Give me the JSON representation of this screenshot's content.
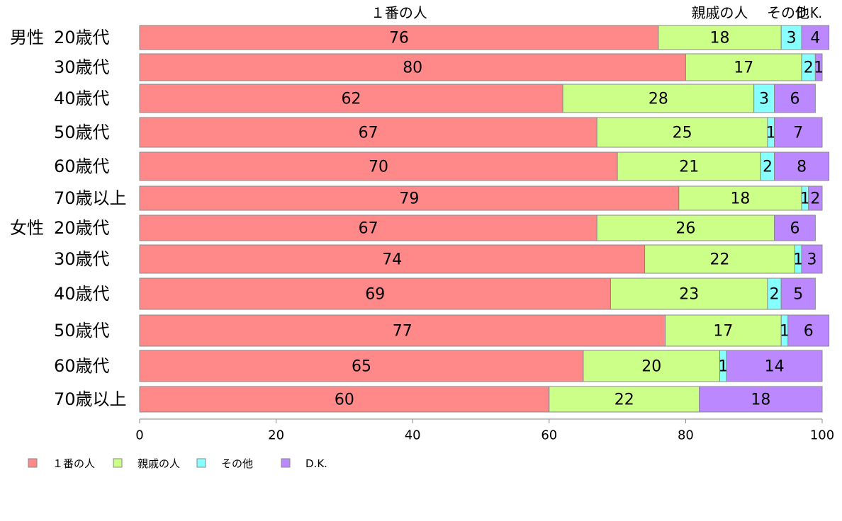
{
  "chart_data": {
    "type": "bar",
    "orientation": "horizontal",
    "stacked": true,
    "top_labels": [
      "１番の人",
      "親戚の人",
      "その他",
      "D.K."
    ],
    "groups": [
      {
        "name": "男性",
        "rows": [
          "20歳代",
          "30歳代",
          "40歳代",
          "50歳代",
          "60歳代",
          "70歳以上"
        ]
      },
      {
        "name": "女性",
        "rows": [
          "20歳代",
          "30歳代",
          "40歳代",
          "50歳代",
          "60歳代",
          "70歳以上"
        ]
      }
    ],
    "series": [
      {
        "name": "１番の人",
        "color": "#ff8888",
        "values": [
          76,
          80,
          62,
          67,
          70,
          79,
          67,
          74,
          69,
          77,
          65,
          60
        ]
      },
      {
        "name": "親戚の人",
        "color": "#ccff88",
        "values": [
          18,
          17,
          28,
          25,
          21,
          18,
          26,
          22,
          23,
          17,
          20,
          22
        ]
      },
      {
        "name": "その他",
        "color": "#88ffff",
        "values": [
          3,
          2,
          3,
          1,
          2,
          1,
          0,
          1,
          2,
          1,
          1,
          0
        ]
      },
      {
        "name": "D.K.",
        "color": "#bb88ff",
        "values": [
          4,
          1,
          6,
          7,
          8,
          2,
          6,
          3,
          5,
          6,
          14,
          18
        ]
      }
    ],
    "xlim": [
      0,
      100
    ],
    "xticks": [
      0,
      20,
      40,
      60,
      80,
      100
    ],
    "legend_position": "bottom-left",
    "grid": false
  }
}
